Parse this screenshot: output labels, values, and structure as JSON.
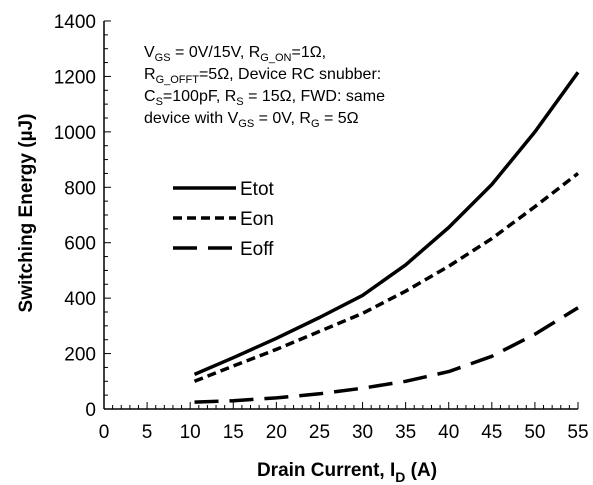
{
  "chart_data": {
    "type": "line",
    "xlabel": {
      "main": "Drain Current, I",
      "sub": "D",
      "tail": " (A)"
    },
    "ylabel": "Switching Energy (µJ)",
    "xlim": [
      0,
      55
    ],
    "ylim": [
      0,
      1400
    ],
    "xticks": [
      "0",
      "5",
      "10",
      "15",
      "20",
      "25",
      "30",
      "35",
      "40",
      "45",
      "50",
      "55"
    ],
    "yticks": [
      "0",
      "200",
      "400",
      "600",
      "800",
      "1000",
      "1200",
      "1400"
    ],
    "grid": false,
    "legend_position": "left-middle",
    "annotation": [
      [
        {
          "t": "V"
        },
        {
          "t": "GS",
          "sub": true
        },
        {
          "t": " = 0V/15V, R"
        },
        {
          "t": "G_ON",
          "sub": true
        },
        {
          "t": "=1Ω,"
        }
      ],
      [
        {
          "t": "R"
        },
        {
          "t": "G_OFFT",
          "sub": true
        },
        {
          "t": "=5Ω,  Device RC snubber:"
        }
      ],
      [
        {
          "t": "C"
        },
        {
          "t": "S",
          "sub": true
        },
        {
          "t": "=100pF,   R"
        },
        {
          "t": "S",
          "sub": true
        },
        {
          "t": " = 15Ω, FWD: same"
        }
      ],
      [
        {
          "t": "device with V"
        },
        {
          "t": "GS",
          "sub": true
        },
        {
          "t": " = 0V, R"
        },
        {
          "t": "G",
          "sub": true
        },
        {
          "t": " = 5Ω"
        }
      ]
    ],
    "series": [
      {
        "name": "Etot",
        "dash": "solid",
        "x": [
          10.5,
          15,
          20,
          25,
          30,
          35,
          40,
          45,
          50,
          55
        ],
        "y": [
          125,
          185,
          255,
          330,
          410,
          520,
          655,
          810,
          1000,
          1215
        ]
      },
      {
        "name": "Eon",
        "dash": "short",
        "x": [
          10.5,
          15,
          20,
          25,
          30,
          35,
          40,
          45,
          50,
          55
        ],
        "y": [
          100,
          155,
          215,
          280,
          345,
          425,
          515,
          615,
          730,
          850
        ]
      },
      {
        "name": "Eoff",
        "dash": "long",
        "x": [
          10.5,
          15,
          20,
          25,
          30,
          35,
          40,
          45,
          50,
          55
        ],
        "y": [
          25,
          30,
          40,
          55,
          75,
          100,
          135,
          190,
          270,
          365
        ]
      }
    ]
  }
}
